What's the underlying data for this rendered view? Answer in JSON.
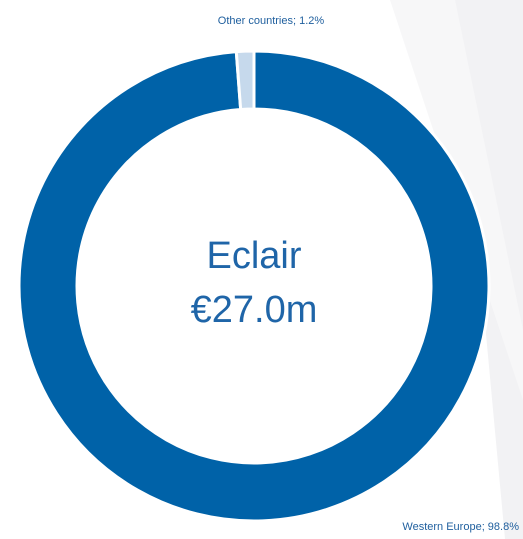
{
  "chart_data": {
    "type": "donut",
    "values": [
      98.8,
      1.2
    ],
    "value_labels": [
      "Western Europe; 98.8%",
      "Other countries; 1.2%"
    ],
    "colors": [
      "#0062a8",
      "#c6d9ec"
    ],
    "center_title": "Eclair",
    "center_value": "€27.0m"
  }
}
